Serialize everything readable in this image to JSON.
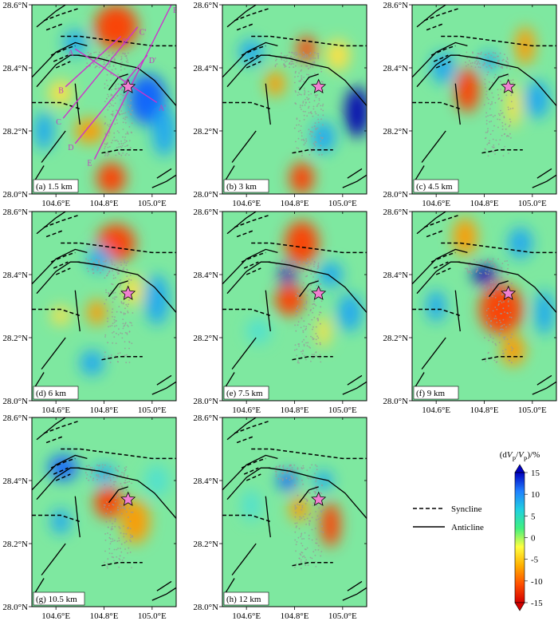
{
  "chart_data": {
    "type": "heatmap",
    "variable": "dVp/Vp",
    "x_ticks": [
      "104.6°E",
      "104.8°E",
      "105.0°E"
    ],
    "y_ticks": [
      "28.0°N",
      "28.2°N",
      "28.4°N",
      "28.6°N"
    ],
    "x_range": [
      104.5,
      105.1
    ],
    "y_range": [
      28.0,
      28.6
    ],
    "epicenter": {
      "lon": 104.9,
      "lat": 28.34
    },
    "panels": [
      {
        "label": "(a) 1.5 km"
      },
      {
        "label": "(b) 3 km"
      },
      {
        "label": "(c) 4.5 km"
      },
      {
        "label": "(d) 6 km"
      },
      {
        "label": "(e) 7.5 km"
      },
      {
        "label": "(f) 9 km"
      },
      {
        "label": "(g) 10.5 km"
      },
      {
        "label": "(h) 12 km"
      }
    ],
    "profile_lines": [
      {
        "start": "A",
        "end": "A'"
      },
      {
        "start": "B",
        "end": "B'"
      },
      {
        "start": "C",
        "end": "C'"
      },
      {
        "start": "D",
        "end": "D'"
      },
      {
        "start": "E",
        "end": "E'"
      }
    ],
    "colorbar": {
      "title_parts": [
        "(d",
        "V",
        "P",
        "/",
        "V",
        "P",
        ")/%"
      ],
      "ticks": [
        "15",
        "10",
        "5",
        "0",
        "-5",
        "-10",
        "-15"
      ],
      "range": [
        -15,
        15
      ],
      "colors": [
        "#d40000",
        "#ff5000",
        "#ffb000",
        "#ffff40",
        "#40f080",
        "#20d0e0",
        "#2080ff",
        "#0000c0"
      ]
    },
    "legend": [
      {
        "style": "dashed",
        "label": "Syncline"
      },
      {
        "style": "solid",
        "label": "Anticline"
      }
    ]
  }
}
